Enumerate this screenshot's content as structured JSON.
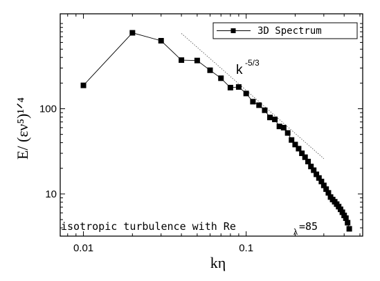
{
  "chart_data": {
    "type": "line",
    "xlabel": "kη",
    "ylabel": "E/ (εν⁵)¹ᐟ⁴",
    "xscale": "log",
    "yscale": "log",
    "xlim": [
      0.0072,
      0.52
    ],
    "ylim": [
      3.2,
      1300
    ],
    "xticks": [
      {
        "value": 0.01,
        "label": "0.01"
      },
      {
        "value": 0.1,
        "label": "0.1"
      }
    ],
    "yticks": [
      {
        "value": 10,
        "label": "10"
      },
      {
        "value": 100,
        "label": "100"
      }
    ],
    "legend": {
      "position": "top-right",
      "entries": [
        "3D Spectrum"
      ]
    },
    "series": [
      {
        "name": "3D Spectrum",
        "x": [
          0.01,
          0.02,
          0.03,
          0.04,
          0.05,
          0.06,
          0.07,
          0.08,
          0.09,
          0.1,
          0.11,
          0.12,
          0.13,
          0.14,
          0.15,
          0.16,
          0.17,
          0.18,
          0.19,
          0.2,
          0.21,
          0.22,
          0.23,
          0.24,
          0.25,
          0.26,
          0.27,
          0.28,
          0.29,
          0.3,
          0.31,
          0.32,
          0.33,
          0.34,
          0.35,
          0.36,
          0.37,
          0.38,
          0.39,
          0.4,
          0.41,
          0.42,
          0.43
        ],
        "values": [
          188,
          778,
          628,
          372,
          368,
          283,
          228,
          177,
          180,
          151,
          121,
          110,
          96,
          79,
          75,
          62,
          60,
          52,
          43,
          38,
          34,
          30,
          27,
          24,
          21,
          19,
          17,
          15.4,
          14,
          12.6,
          11.4,
          10.3,
          9.2,
          8.6,
          8.1,
          7.6,
          7.1,
          6.6,
          6.1,
          5.6,
          5.2,
          4.6,
          3.9
        ]
      }
    ],
    "reference_line": {
      "label": "k",
      "exponent": "-5/3",
      "x": [
        0.04,
        0.3
      ],
      "values": [
        765,
        26
      ]
    },
    "annotation": {
      "text": "isotropic turbulence with Re",
      "subscript": "λ",
      "suffix": "=85"
    }
  }
}
